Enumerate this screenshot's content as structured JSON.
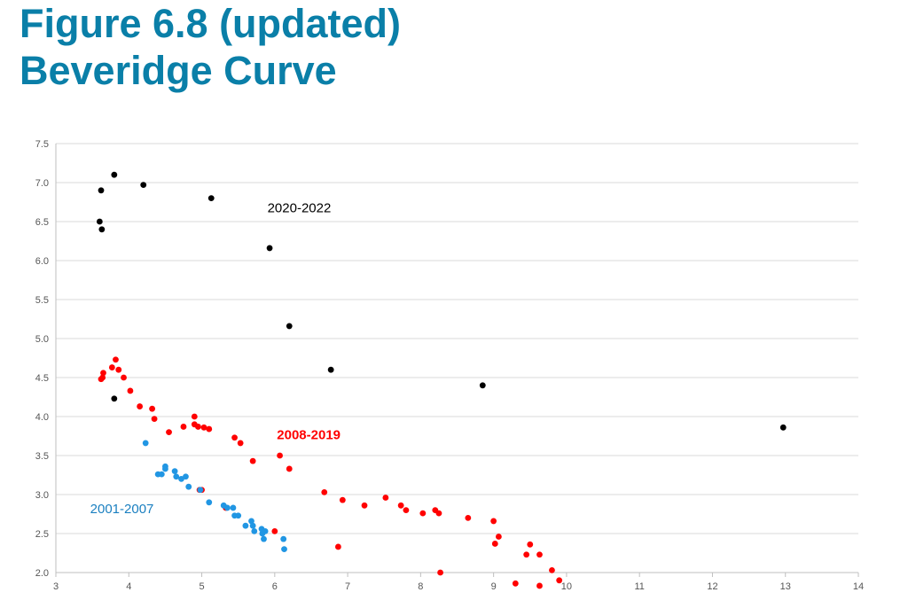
{
  "header": {
    "title_line1": "Figure 6.8 (updated)",
    "title_line2": "Beveridge Curve"
  },
  "chart_data": {
    "type": "scatter",
    "xlim": [
      3,
      14
    ],
    "ylim": [
      2.0,
      7.5
    ],
    "x_ticks": [
      "3",
      "4",
      "5",
      "6",
      "7",
      "8",
      "9",
      "10",
      "11",
      "12",
      "13",
      "14"
    ],
    "y_ticks": [
      "2.0",
      "2.5",
      "3.0",
      "3.5",
      "4.0",
      "4.5",
      "5.0",
      "5.5",
      "6.0",
      "6.5",
      "7.0",
      "7.5"
    ],
    "grid": "horizontal",
    "series": [
      {
        "name": "2020-2022",
        "color": "#000000",
        "points": [
          [
            3.6,
            6.5
          ],
          [
            3.62,
            6.9
          ],
          [
            3.63,
            6.4
          ],
          [
            3.8,
            7.1
          ],
          [
            4.2,
            6.97
          ],
          [
            5.13,
            6.8
          ],
          [
            5.93,
            6.16
          ],
          [
            6.2,
            5.16
          ],
          [
            6.77,
            4.6
          ],
          [
            3.8,
            4.23
          ],
          [
            8.85,
            4.4
          ],
          [
            12.97,
            3.86
          ]
        ]
      },
      {
        "name": "2008-2019",
        "color": "#ff0000",
        "points": [
          [
            3.62,
            4.48
          ],
          [
            3.64,
            4.5
          ],
          [
            3.65,
            4.56
          ],
          [
            3.77,
            4.63
          ],
          [
            3.82,
            4.73
          ],
          [
            3.86,
            4.6
          ],
          [
            3.93,
            4.5
          ],
          [
            4.02,
            4.33
          ],
          [
            4.15,
            4.13
          ],
          [
            4.32,
            4.1
          ],
          [
            4.35,
            3.97
          ],
          [
            4.55,
            3.8
          ],
          [
            4.75,
            3.87
          ],
          [
            4.9,
            4.0
          ],
          [
            4.9,
            3.9
          ],
          [
            4.95,
            3.87
          ],
          [
            5.03,
            3.86
          ],
          [
            5.1,
            3.84
          ],
          [
            5.45,
            3.73
          ],
          [
            5.53,
            3.66
          ],
          [
            5.7,
            3.43
          ],
          [
            6.07,
            3.5
          ],
          [
            6.2,
            3.33
          ],
          [
            4.97,
            3.06
          ],
          [
            5.0,
            3.06
          ],
          [
            5.33,
            2.83
          ],
          [
            6.0,
            2.53
          ],
          [
            6.68,
            3.03
          ],
          [
            6.93,
            2.93
          ],
          [
            7.23,
            2.86
          ],
          [
            7.52,
            2.96
          ],
          [
            7.73,
            2.86
          ],
          [
            7.8,
            2.8
          ],
          [
            8.03,
            2.76
          ],
          [
            8.2,
            2.8
          ],
          [
            8.25,
            2.76
          ],
          [
            8.65,
            2.7
          ],
          [
            9.0,
            2.66
          ],
          [
            9.02,
            2.37
          ],
          [
            9.07,
            2.46
          ],
          [
            9.45,
            2.23
          ],
          [
            9.5,
            2.36
          ],
          [
            9.63,
            2.23
          ],
          [
            9.8,
            2.03
          ],
          [
            9.9,
            1.9
          ],
          [
            6.87,
            2.33
          ],
          [
            8.27,
            2.0
          ],
          [
            9.3,
            1.86
          ],
          [
            9.63,
            1.83
          ]
        ]
      },
      {
        "name": "2001-2007",
        "color": "#2196e3",
        "points": [
          [
            4.23,
            3.66
          ],
          [
            4.4,
            3.26
          ],
          [
            4.45,
            3.26
          ],
          [
            4.5,
            3.33
          ],
          [
            4.5,
            3.36
          ],
          [
            4.63,
            3.3
          ],
          [
            4.65,
            3.23
          ],
          [
            4.72,
            3.2
          ],
          [
            4.78,
            3.23
          ],
          [
            4.82,
            3.1
          ],
          [
            4.98,
            3.06
          ],
          [
            5.1,
            2.9
          ],
          [
            5.3,
            2.86
          ],
          [
            5.35,
            2.83
          ],
          [
            5.43,
            2.83
          ],
          [
            5.45,
            2.73
          ],
          [
            5.5,
            2.73
          ],
          [
            5.6,
            2.6
          ],
          [
            5.68,
            2.66
          ],
          [
            5.7,
            2.6
          ],
          [
            5.72,
            2.53
          ],
          [
            5.82,
            2.56
          ],
          [
            5.83,
            2.5
          ],
          [
            5.85,
            2.43
          ],
          [
            5.87,
            2.53
          ],
          [
            6.12,
            2.43
          ],
          [
            6.13,
            2.3
          ]
        ]
      }
    ],
    "annotations": [
      {
        "text": "2020-2022",
        "x": 5.9,
        "y": 6.62,
        "color": "#000000",
        "bold": false
      },
      {
        "text": "2008-2019",
        "x": 6.03,
        "y": 3.71,
        "color": "#ff0000",
        "bold": true
      },
      {
        "text": "2001-2007",
        "x": 3.47,
        "y": 2.76,
        "color": "#1a7fc0",
        "bold": false
      }
    ]
  }
}
